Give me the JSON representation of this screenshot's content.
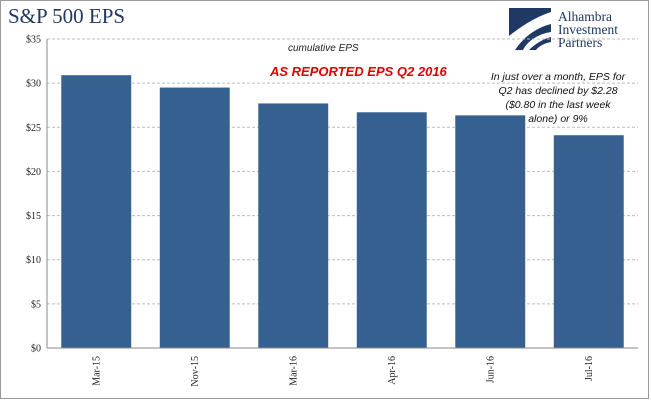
{
  "chart_data": {
    "type": "bar",
    "title": "S&P 500 EPS",
    "subtitle": "cumulative EPS",
    "highlight_label": "AS REPORTED EPS Q2 2016",
    "annotation_lines": [
      "In just over a month, EPS for",
      "Q2 has declined by $2.28",
      "($0.80 in the last week",
      "alone) or 9%"
    ],
    "categories": [
      "Mar-15",
      "Nov-15",
      "Mar-16",
      "Apr-16",
      "Jun-16",
      "Jul-16"
    ],
    "values": [
      30.9,
      29.5,
      27.7,
      26.7,
      26.35,
      24.1
    ],
    "ylim": [
      0,
      35
    ],
    "yticks": [
      0,
      5,
      10,
      15,
      20,
      25,
      30,
      35
    ],
    "ytick_labels": [
      "$0",
      "$5",
      "$10",
      "$15",
      "$20",
      "$25",
      "$30",
      "$35"
    ],
    "grid": true,
    "bar_color": "#36608f",
    "grid_color": "#bdbdbd",
    "xlabel": "",
    "ylabel": ""
  },
  "logo": {
    "lines": [
      "Alhambra",
      "Investment",
      "Partners"
    ],
    "color": "#1f3864"
  }
}
